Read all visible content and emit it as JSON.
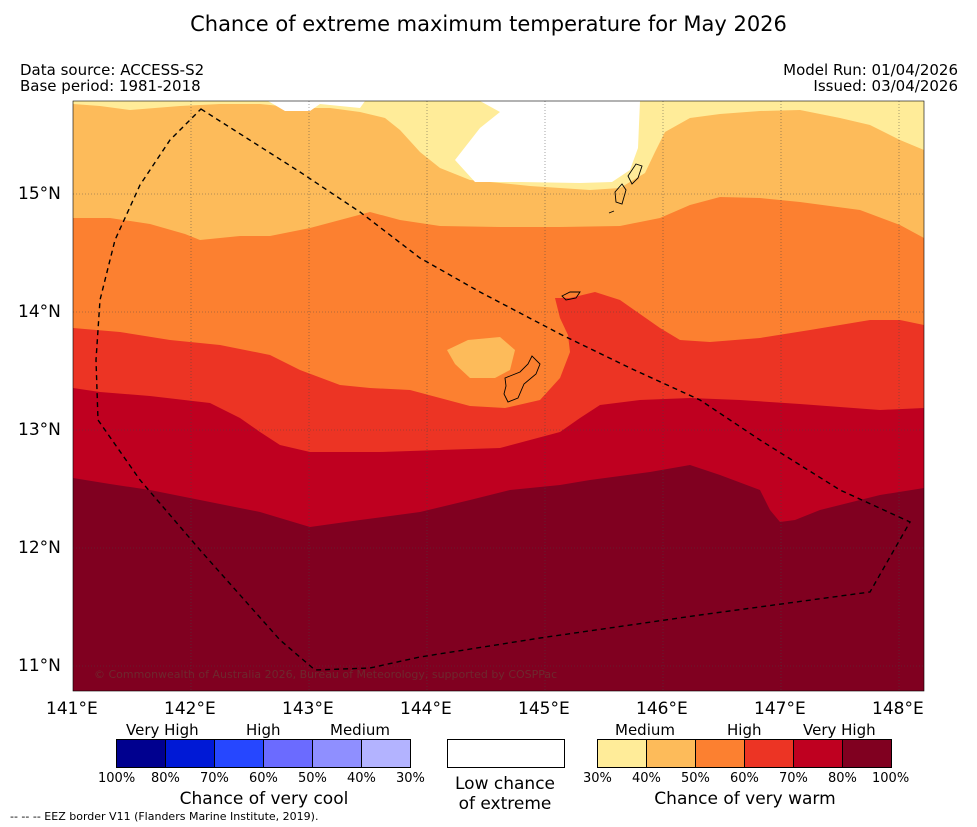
{
  "title": "Chance of extreme maximum temperature for May 2026",
  "meta": {
    "data_source": "Data source: ACCESS-S2",
    "base_period": "Base period: 1981-2018",
    "model_run": "Model Run: 01/04/2026",
    "issued": "Issued: 03/04/2026"
  },
  "axes": {
    "lat_labels": [
      "15°N",
      "14°N",
      "13°N",
      "12°N",
      "11°N"
    ],
    "lon_labels": [
      "141°E",
      "142°E",
      "143°E",
      "144°E",
      "145°E",
      "146°E",
      "147°E",
      "148°E"
    ]
  },
  "copyright": "© Commonwealth of Australia 2026, Bureau of Meteorology, supported by COSPPac",
  "legend": {
    "cool": {
      "headers": [
        "Very High",
        "High",
        "Medium"
      ],
      "ticks": [
        "100%",
        "80%",
        "70%",
        "60%",
        "50%",
        "40%",
        "30%"
      ],
      "caption": "Chance of very cool",
      "colors": [
        "#00008f",
        "#0019d6",
        "#2647ff",
        "#6b6bff",
        "#8f8fff",
        "#b3b3ff"
      ]
    },
    "neutral": {
      "caption_line1": "Low chance",
      "caption_line2": "of extreme",
      "color": "#ffffff"
    },
    "warm": {
      "headers": [
        "Medium",
        "High",
        "Very High"
      ],
      "ticks": [
        "30%",
        "40%",
        "50%",
        "60%",
        "70%",
        "80%",
        "100%"
      ],
      "caption": "Chance of very warm",
      "colors": [
        "#ffec99",
        "#fdbb5a",
        "#fc8030",
        "#ec3424",
        "#bf0020",
        "#800020"
      ]
    }
  },
  "footnote": "--  --  -- EEZ border V11 (Flanders Marine Institute, 2019)."
}
